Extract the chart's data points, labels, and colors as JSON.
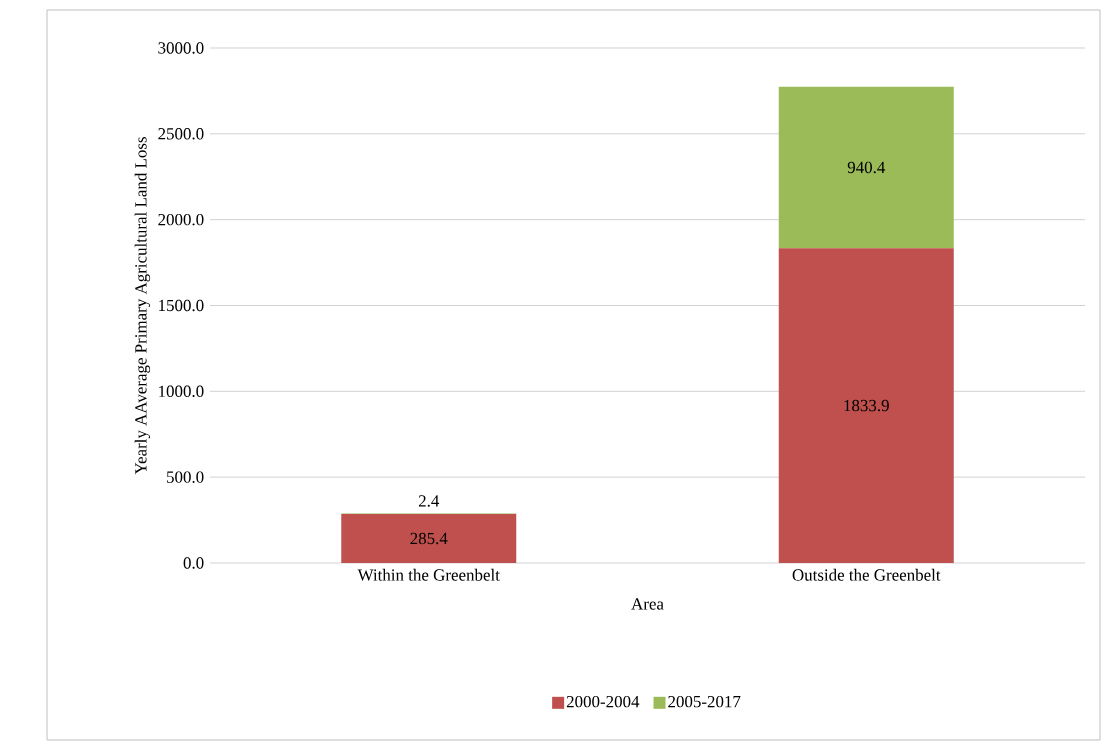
{
  "chart_data": {
    "type": "bar",
    "stacked": true,
    "xlabel": "Area",
    "ylabel": "Yearly AAverage Primary Agricultural Land Loss",
    "categories": [
      "Within the Greenbelt",
      "Outside the Greenbelt"
    ],
    "series": [
      {
        "name": "2000-2004",
        "color": "#c0504d",
        "values": [
          285.4,
          1833.9
        ]
      },
      {
        "name": "2005-2017",
        "color": "#9bbb59",
        "values": [
          2.4,
          940.4
        ]
      }
    ],
    "ylim": [
      0,
      3000
    ],
    "yticks": [
      {
        "value": 0,
        "label": "0.0"
      },
      {
        "value": 500,
        "label": "500.0"
      },
      {
        "value": 1000,
        "label": "1000.0"
      },
      {
        "value": 1500,
        "label": "1500.0"
      },
      {
        "value": 2000,
        "label": "2000.0"
      },
      {
        "value": 2500,
        "label": "2500.0"
      },
      {
        "value": 3000,
        "label": "3000.0"
      }
    ],
    "grid": "y",
    "legend": "bottom",
    "data_labels": true
  }
}
